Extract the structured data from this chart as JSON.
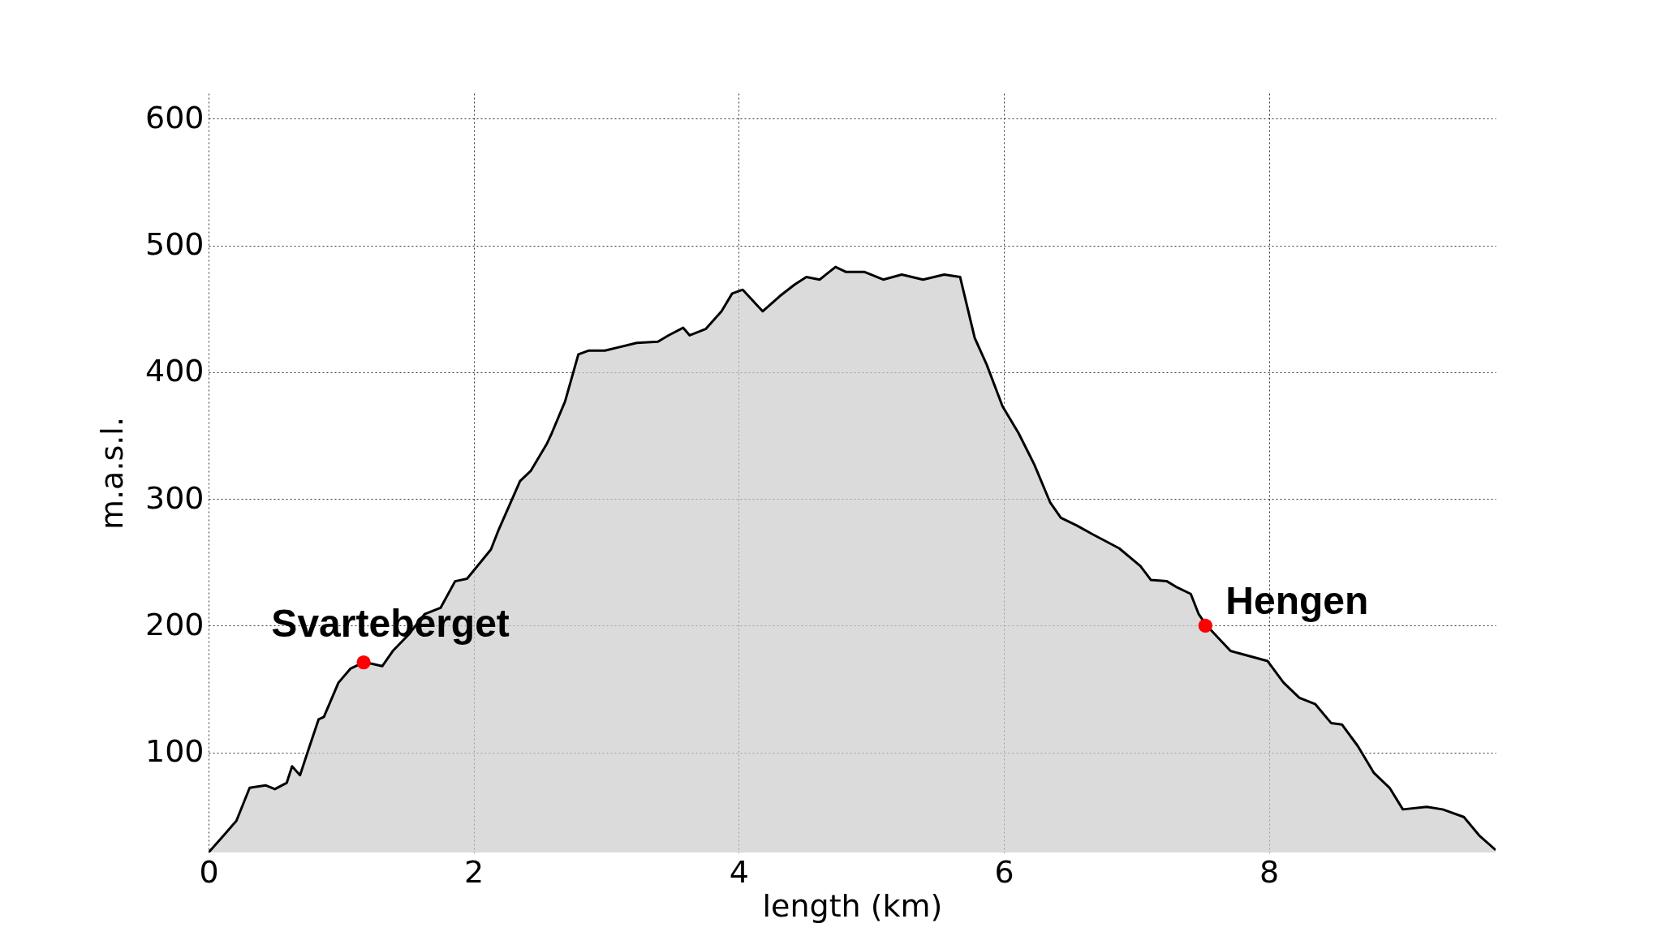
{
  "chart_data": {
    "type": "area",
    "xlabel": "length (km)",
    "ylabel": "m.a.s.l.",
    "xlim": [
      0,
      9.71
    ],
    "ylim": [
      21,
      620
    ],
    "xticks": [
      0,
      2,
      4,
      6,
      8
    ],
    "yticks": [
      100,
      200,
      300,
      400,
      500,
      600
    ],
    "grid": true,
    "series": [
      {
        "color": "#cccccc",
        "x": [
          0,
          0.11,
          0.21,
          0.31,
          0.43,
          0.5,
          0.59,
          0.63,
          0.69,
          0.75,
          0.83,
          0.87,
          0.98,
          1.07,
          1.17,
          1.23,
          1.31,
          1.39,
          1.51,
          1.63,
          1.75,
          1.86,
          1.95,
          2.13,
          2.19,
          2.35,
          2.43,
          2.55,
          2.59,
          2.69,
          2.79,
          2.87,
          2.99,
          3.23,
          3.39,
          3.47,
          3.58,
          3.63,
          3.75,
          3.87,
          3.95,
          4.03,
          4.18,
          4.31,
          4.42,
          4.51,
          4.61,
          4.73,
          4.81,
          4.95,
          5.09,
          5.23,
          5.39,
          5.55,
          5.67,
          5.78,
          5.87,
          5.99,
          6.11,
          6.23,
          6.35,
          6.43,
          6.55,
          6.67,
          6.87,
          7.03,
          7.11,
          7.23,
          7.31,
          7.41,
          7.47,
          7.53,
          7.71,
          7.99,
          8.11,
          8.23,
          8.35,
          8.47,
          8.55,
          8.67,
          8.79,
          8.91,
          9.01,
          9.19,
          9.31,
          9.47,
          9.59,
          9.71
        ],
        "values": [
          21,
          34,
          46,
          72,
          74,
          71,
          76,
          89,
          82,
          101,
          126,
          128,
          155,
          166,
          171,
          170,
          168,
          180,
          193,
          209,
          214,
          235,
          237,
          260,
          276,
          314,
          322,
          343,
          352,
          377,
          414,
          417,
          417,
          423,
          424,
          429,
          435,
          429,
          434,
          448,
          462,
          465,
          448,
          460,
          469,
          475,
          473,
          483,
          479,
          479,
          473,
          477,
          473,
          477,
          475,
          427,
          406,
          373,
          352,
          327,
          297,
          285,
          279,
          272,
          261,
          247,
          236,
          235,
          230,
          225,
          209,
          200,
          180,
          172,
          155,
          143,
          138,
          123,
          122,
          105,
          84,
          72,
          55,
          57,
          55,
          49,
          34,
          23
        ]
      },
      {
        "type": "scatter",
        "color": "#ff0000",
        "marker": "circle",
        "x": [
          1.17,
          7.52
        ],
        "values": [
          171,
          200
        ]
      }
    ],
    "annotations": [
      {
        "text": "Svarteberget",
        "x": 1.17,
        "y": 171
      },
      {
        "text": "Hengen",
        "x": 7.52,
        "y": 200
      }
    ]
  }
}
